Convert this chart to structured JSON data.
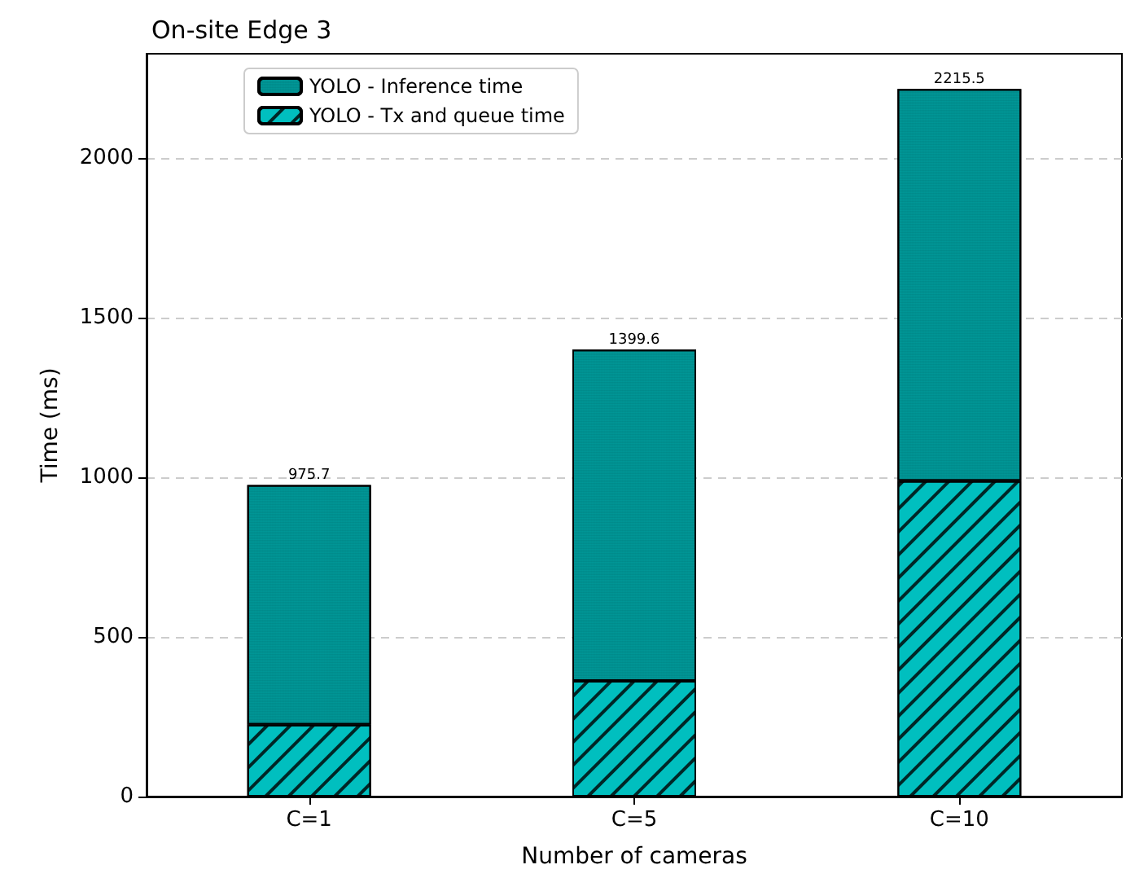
{
  "chart_data": {
    "type": "bar",
    "title": "On-site Edge 3",
    "xlabel": "Number of cameras",
    "ylabel": "Time (ms)",
    "categories": [
      "C=1",
      "C=5",
      "C=10"
    ],
    "stacked": true,
    "series": [
      {
        "name": "YOLO - Tx and queue time",
        "color": "#00bfbf",
        "values": [
          225,
          362,
          988
        ]
      },
      {
        "name": "YOLO - Inference time",
        "color": "#00bfbf",
        "values": [
          750.7,
          1037.6,
          1227.5
        ]
      }
    ],
    "totals": [
      "975.7",
      "1399.6",
      "2215.5"
    ],
    "ylim": [
      0,
      2326
    ],
    "yticks": [
      0,
      500,
      1000,
      1500,
      2000
    ],
    "grid": "y",
    "legend": "top left"
  }
}
